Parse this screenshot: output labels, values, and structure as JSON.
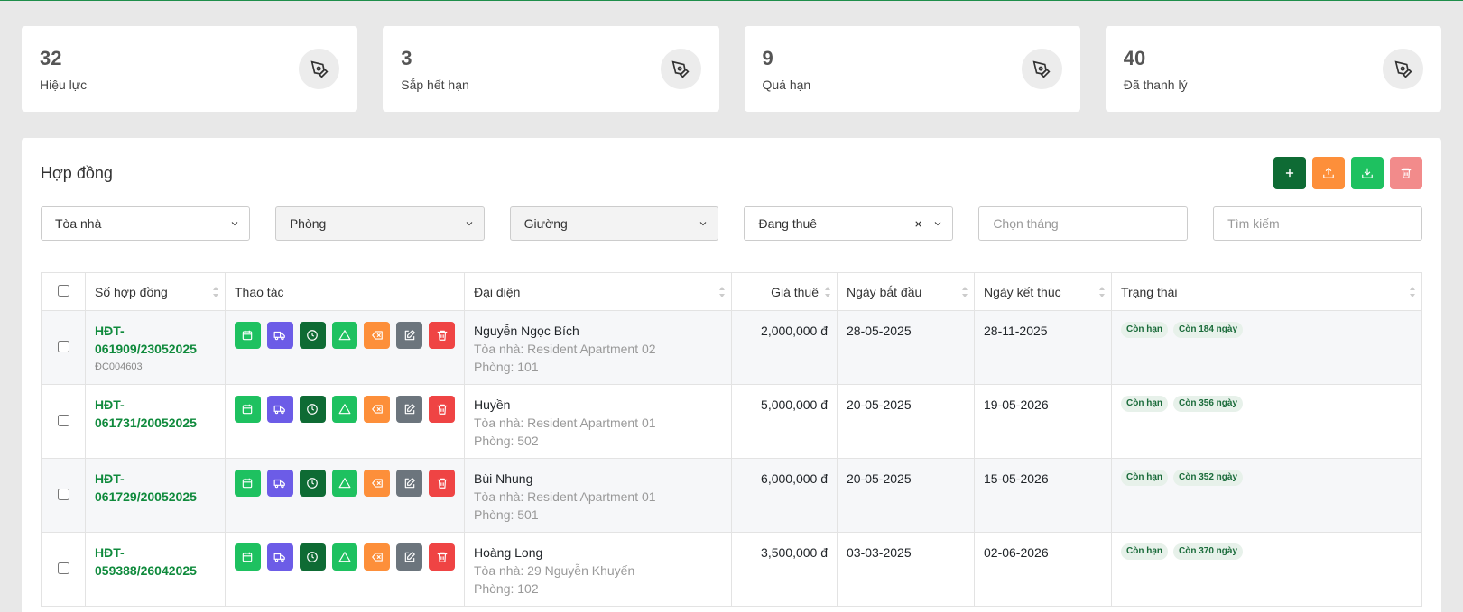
{
  "stats": [
    {
      "value": "32",
      "label": "Hiệu lực"
    },
    {
      "value": "3",
      "label": "Sắp hết hạn"
    },
    {
      "value": "9",
      "label": "Quá hạn"
    },
    {
      "value": "40",
      "label": "Đã thanh lý"
    }
  ],
  "panel": {
    "title": "Hợp đồng",
    "buttons": [
      {
        "icon": "plus-icon",
        "color": "#0e6b34"
      },
      {
        "icon": "upload-icon",
        "color": "#fd8f3a"
      },
      {
        "icon": "download-icon",
        "color": "#1ec160"
      },
      {
        "icon": "trash-icon",
        "color": "#f28b8b"
      }
    ]
  },
  "filters": {
    "building": "Tòa nhà",
    "room": "Phòng",
    "bed": "Giường",
    "status": "Đang thuê",
    "month_placeholder": "Chọn tháng",
    "search_placeholder": "Tìm kiếm"
  },
  "table": {
    "headers": {
      "contract_no": "Số hợp đồng",
      "actions": "Thao tác",
      "representative": "Đại diện",
      "price": "Giá thuê",
      "start": "Ngày bắt đầu",
      "end": "Ngày kết thúc",
      "status": "Trạng thái"
    },
    "rows": [
      {
        "code1": "HĐT-",
        "code2": "061909/23052025",
        "sub": "ĐC004603",
        "name": "Nguyễn Ngọc Bích",
        "building": "Tòa nhà: Resident Apartment 02",
        "room": "Phòng: 101",
        "price": "2,000,000 đ",
        "start": "28-05-2025",
        "end": "28-11-2025",
        "status": "Còn hạn",
        "remaining": "Còn 184 ngày"
      },
      {
        "code1": "HĐT-",
        "code2": "061731/20052025",
        "sub": "",
        "name": "Huyền",
        "building": "Tòa nhà: Resident Apartment 01",
        "room": "Phòng: 502",
        "price": "5,000,000 đ",
        "start": "20-05-2025",
        "end": "19-05-2026",
        "status": "Còn hạn",
        "remaining": "Còn 356 ngày"
      },
      {
        "code1": "HĐT-",
        "code2": "061729/20052025",
        "sub": "",
        "name": "Bùi Nhung",
        "building": "Tòa nhà: Resident Apartment 01",
        "room": "Phòng: 501",
        "price": "6,000,000 đ",
        "start": "20-05-2025",
        "end": "15-05-2026",
        "status": "Còn hạn",
        "remaining": "Còn 352 ngày"
      },
      {
        "code1": "HĐT-",
        "code2": "059388/26042025",
        "sub": "",
        "name": "Hoàng Long",
        "building": "Tòa nhà: 29 Nguyễn Khuyến",
        "room": "Phòng: 102",
        "price": "3,500,000 đ",
        "start": "03-03-2025",
        "end": "02-06-2026",
        "status": "Còn hạn",
        "remaining": "Còn 370 ngày"
      }
    ],
    "row_actions": [
      {
        "icon": "calendar-icon",
        "color": "#1ec160"
      },
      {
        "icon": "truck-icon",
        "color": "#6c5ce7"
      },
      {
        "icon": "clock-icon",
        "color": "#0e6b34"
      },
      {
        "icon": "warning-icon",
        "color": "#1ec160"
      },
      {
        "icon": "backspace-icon",
        "color": "#fd8f3a"
      },
      {
        "icon": "edit-icon",
        "color": "#6c757d"
      },
      {
        "icon": "trash-icon",
        "color": "#ef4444"
      }
    ]
  }
}
